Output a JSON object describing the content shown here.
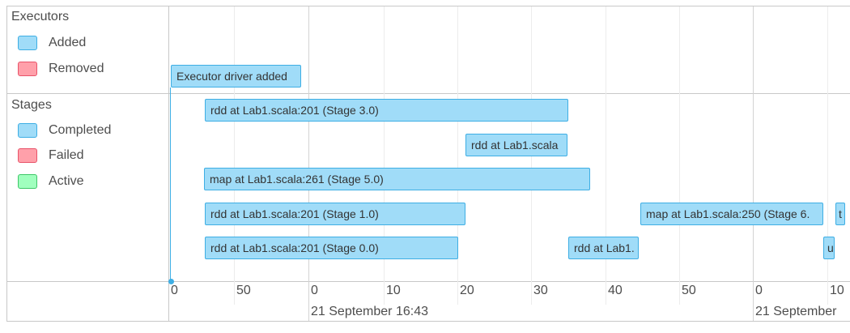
{
  "colors": {
    "added": "#a0dcf8",
    "removed": "#ffa0aa",
    "completed": "#a0dcf8",
    "failed": "#ffa0aa",
    "active": "#a0ffbe"
  },
  "groups": {
    "executors": {
      "label": "Executors",
      "legend": [
        {
          "label": "Added",
          "color": "#a0dcf8",
          "border": "#3eaee4"
        },
        {
          "label": "Removed",
          "color": "#ffa0aa",
          "border": "#e8546a"
        }
      ]
    },
    "stages": {
      "label": "Stages",
      "legend": [
        {
          "label": "Completed",
          "color": "#a0dcf8",
          "border": "#3eaee4"
        },
        {
          "label": "Failed",
          "color": "#ffa0aa",
          "border": "#e8546a"
        },
        {
          "label": "Active",
          "color": "#a0ffbe",
          "border": "#3ec768"
        }
      ]
    }
  },
  "events": {
    "executor_added": "Executor driver added"
  },
  "stages": [
    {
      "label": "rdd at Lab1.scala:201 (Stage 3.0)"
    },
    {
      "label": "rdd at Lab1.scala"
    },
    {
      "label": "map at Lab1.scala:261 (Stage 5.0)"
    },
    {
      "label": "rdd at Lab1.scala:201 (Stage 1.0)"
    },
    {
      "label": "map at Lab1.scala:250 (Stage 6."
    },
    {
      "label": "t"
    },
    {
      "label": "rdd at Lab1.scala:201 (Stage 0.0)"
    },
    {
      "label": "rdd at Lab1."
    },
    {
      "label": "u"
    }
  ],
  "axis": {
    "minor_ticks": [
      "0",
      "50",
      "0",
      "10",
      "20",
      "30",
      "40",
      "50",
      "0",
      "10"
    ],
    "major_labels": [
      "21 September 16:43",
      "21 September"
    ]
  }
}
